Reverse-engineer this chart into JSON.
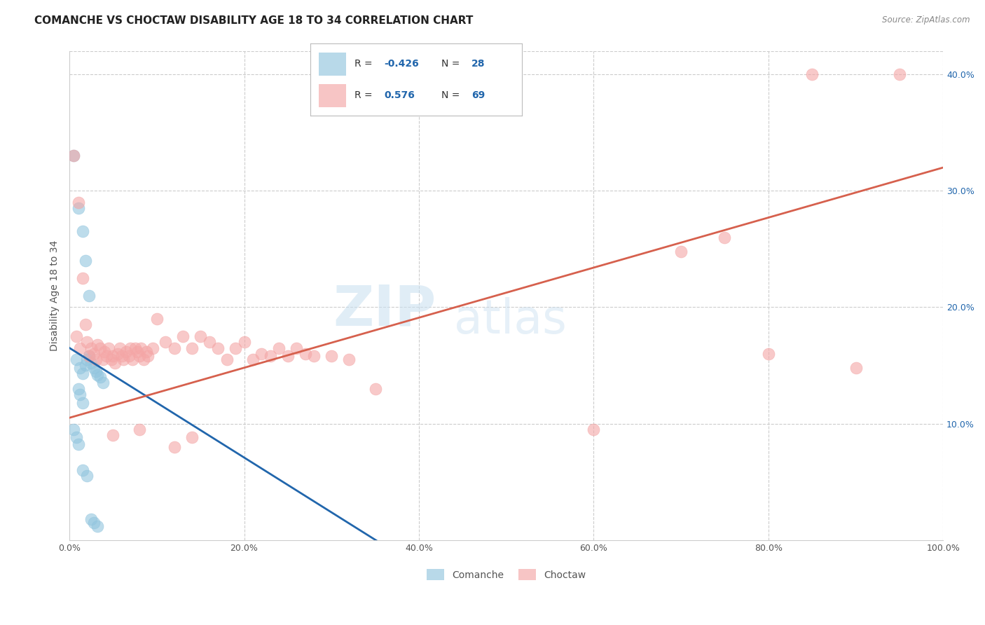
{
  "title": "COMANCHE VS CHOCTAW DISABILITY AGE 18 TO 34 CORRELATION CHART",
  "source": "Source: ZipAtlas.com",
  "ylabel": "Disability Age 18 to 34",
  "xlim": [
    0,
    1.0
  ],
  "ylim": [
    0,
    0.42
  ],
  "watermark_zip": "ZIP",
  "watermark_atlas": "atlas",
  "legend_comanche_R": "-0.426",
  "legend_comanche_N": "28",
  "legend_choctaw_R": "0.576",
  "legend_choctaw_N": "69",
  "comanche_color": "#92c5de",
  "choctaw_color": "#f4a6a6",
  "comanche_line_color": "#2166ac",
  "choctaw_line_color": "#d6604d",
  "background_color": "#ffffff",
  "grid_color": "#cccccc",
  "comanche_points": [
    [
      0.005,
      0.33
    ],
    [
      0.01,
      0.285
    ],
    [
      0.015,
      0.265
    ],
    [
      0.018,
      0.24
    ],
    [
      0.022,
      0.21
    ],
    [
      0.008,
      0.155
    ],
    [
      0.012,
      0.148
    ],
    [
      0.015,
      0.143
    ],
    [
      0.018,
      0.15
    ],
    [
      0.02,
      0.155
    ],
    [
      0.022,
      0.158
    ],
    [
      0.025,
      0.152
    ],
    [
      0.028,
      0.148
    ],
    [
      0.03,
      0.145
    ],
    [
      0.032,
      0.142
    ],
    [
      0.035,
      0.14
    ],
    [
      0.038,
      0.135
    ],
    [
      0.01,
      0.13
    ],
    [
      0.012,
      0.125
    ],
    [
      0.015,
      0.118
    ],
    [
      0.005,
      0.095
    ],
    [
      0.008,
      0.088
    ],
    [
      0.01,
      0.082
    ],
    [
      0.015,
      0.06
    ],
    [
      0.02,
      0.055
    ],
    [
      0.025,
      0.018
    ],
    [
      0.028,
      0.015
    ],
    [
      0.032,
      0.012
    ]
  ],
  "choctaw_points": [
    [
      0.005,
      0.33
    ],
    [
      0.01,
      0.29
    ],
    [
      0.008,
      0.175
    ],
    [
      0.012,
      0.165
    ],
    [
      0.015,
      0.225
    ],
    [
      0.018,
      0.185
    ],
    [
      0.02,
      0.17
    ],
    [
      0.022,
      0.158
    ],
    [
      0.025,
      0.165
    ],
    [
      0.028,
      0.16
    ],
    [
      0.03,
      0.155
    ],
    [
      0.032,
      0.168
    ],
    [
      0.035,
      0.165
    ],
    [
      0.038,
      0.155
    ],
    [
      0.04,
      0.162
    ],
    [
      0.042,
      0.158
    ],
    [
      0.045,
      0.165
    ],
    [
      0.048,
      0.155
    ],
    [
      0.05,
      0.158
    ],
    [
      0.052,
      0.152
    ],
    [
      0.055,
      0.16
    ],
    [
      0.058,
      0.165
    ],
    [
      0.06,
      0.158
    ],
    [
      0.062,
      0.155
    ],
    [
      0.065,
      0.162
    ],
    [
      0.068,
      0.158
    ],
    [
      0.07,
      0.165
    ],
    [
      0.072,
      0.155
    ],
    [
      0.075,
      0.165
    ],
    [
      0.078,
      0.162
    ],
    [
      0.08,
      0.158
    ],
    [
      0.082,
      0.165
    ],
    [
      0.085,
      0.155
    ],
    [
      0.088,
      0.162
    ],
    [
      0.09,
      0.158
    ],
    [
      0.095,
      0.165
    ],
    [
      0.1,
      0.19
    ],
    [
      0.11,
      0.17
    ],
    [
      0.12,
      0.165
    ],
    [
      0.13,
      0.175
    ],
    [
      0.14,
      0.165
    ],
    [
      0.15,
      0.175
    ],
    [
      0.16,
      0.17
    ],
    [
      0.17,
      0.165
    ],
    [
      0.05,
      0.09
    ],
    [
      0.08,
      0.095
    ],
    [
      0.18,
      0.155
    ],
    [
      0.19,
      0.165
    ],
    [
      0.2,
      0.17
    ],
    [
      0.21,
      0.155
    ],
    [
      0.22,
      0.16
    ],
    [
      0.23,
      0.158
    ],
    [
      0.24,
      0.165
    ],
    [
      0.25,
      0.158
    ],
    [
      0.26,
      0.165
    ],
    [
      0.27,
      0.16
    ],
    [
      0.28,
      0.158
    ],
    [
      0.3,
      0.158
    ],
    [
      0.32,
      0.155
    ],
    [
      0.35,
      0.13
    ],
    [
      0.6,
      0.095
    ],
    [
      0.7,
      0.248
    ],
    [
      0.75,
      0.26
    ],
    [
      0.8,
      0.16
    ],
    [
      0.85,
      0.4
    ],
    [
      0.9,
      0.148
    ],
    [
      0.95,
      0.4
    ],
    [
      0.12,
      0.08
    ],
    [
      0.14,
      0.088
    ]
  ]
}
